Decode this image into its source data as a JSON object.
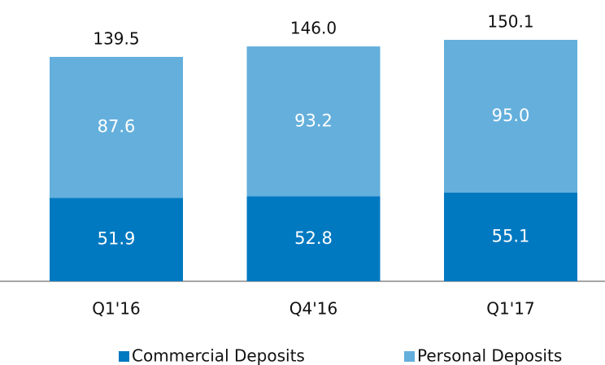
{
  "chart_data": {
    "type": "stacked_bar",
    "categories": [
      "Q1'16",
      "Q4'16",
      "Q1'17"
    ],
    "series": [
      {
        "name": "Commercial Deposits",
        "color": "#0079c1",
        "values": [
          51.9,
          52.8,
          55.1
        ]
      },
      {
        "name": "Personal Deposits",
        "color": "#64afdc",
        "values": [
          87.6,
          93.2,
          95
        ],
        "value_labels": [
          "87.6",
          "93.2",
          "95.0"
        ]
      }
    ],
    "totals": [
      139.5,
      146,
      150.1
    ],
    "total_labels": [
      "139.5",
      "146.0",
      "150.1"
    ],
    "legend": "bottom"
  }
}
